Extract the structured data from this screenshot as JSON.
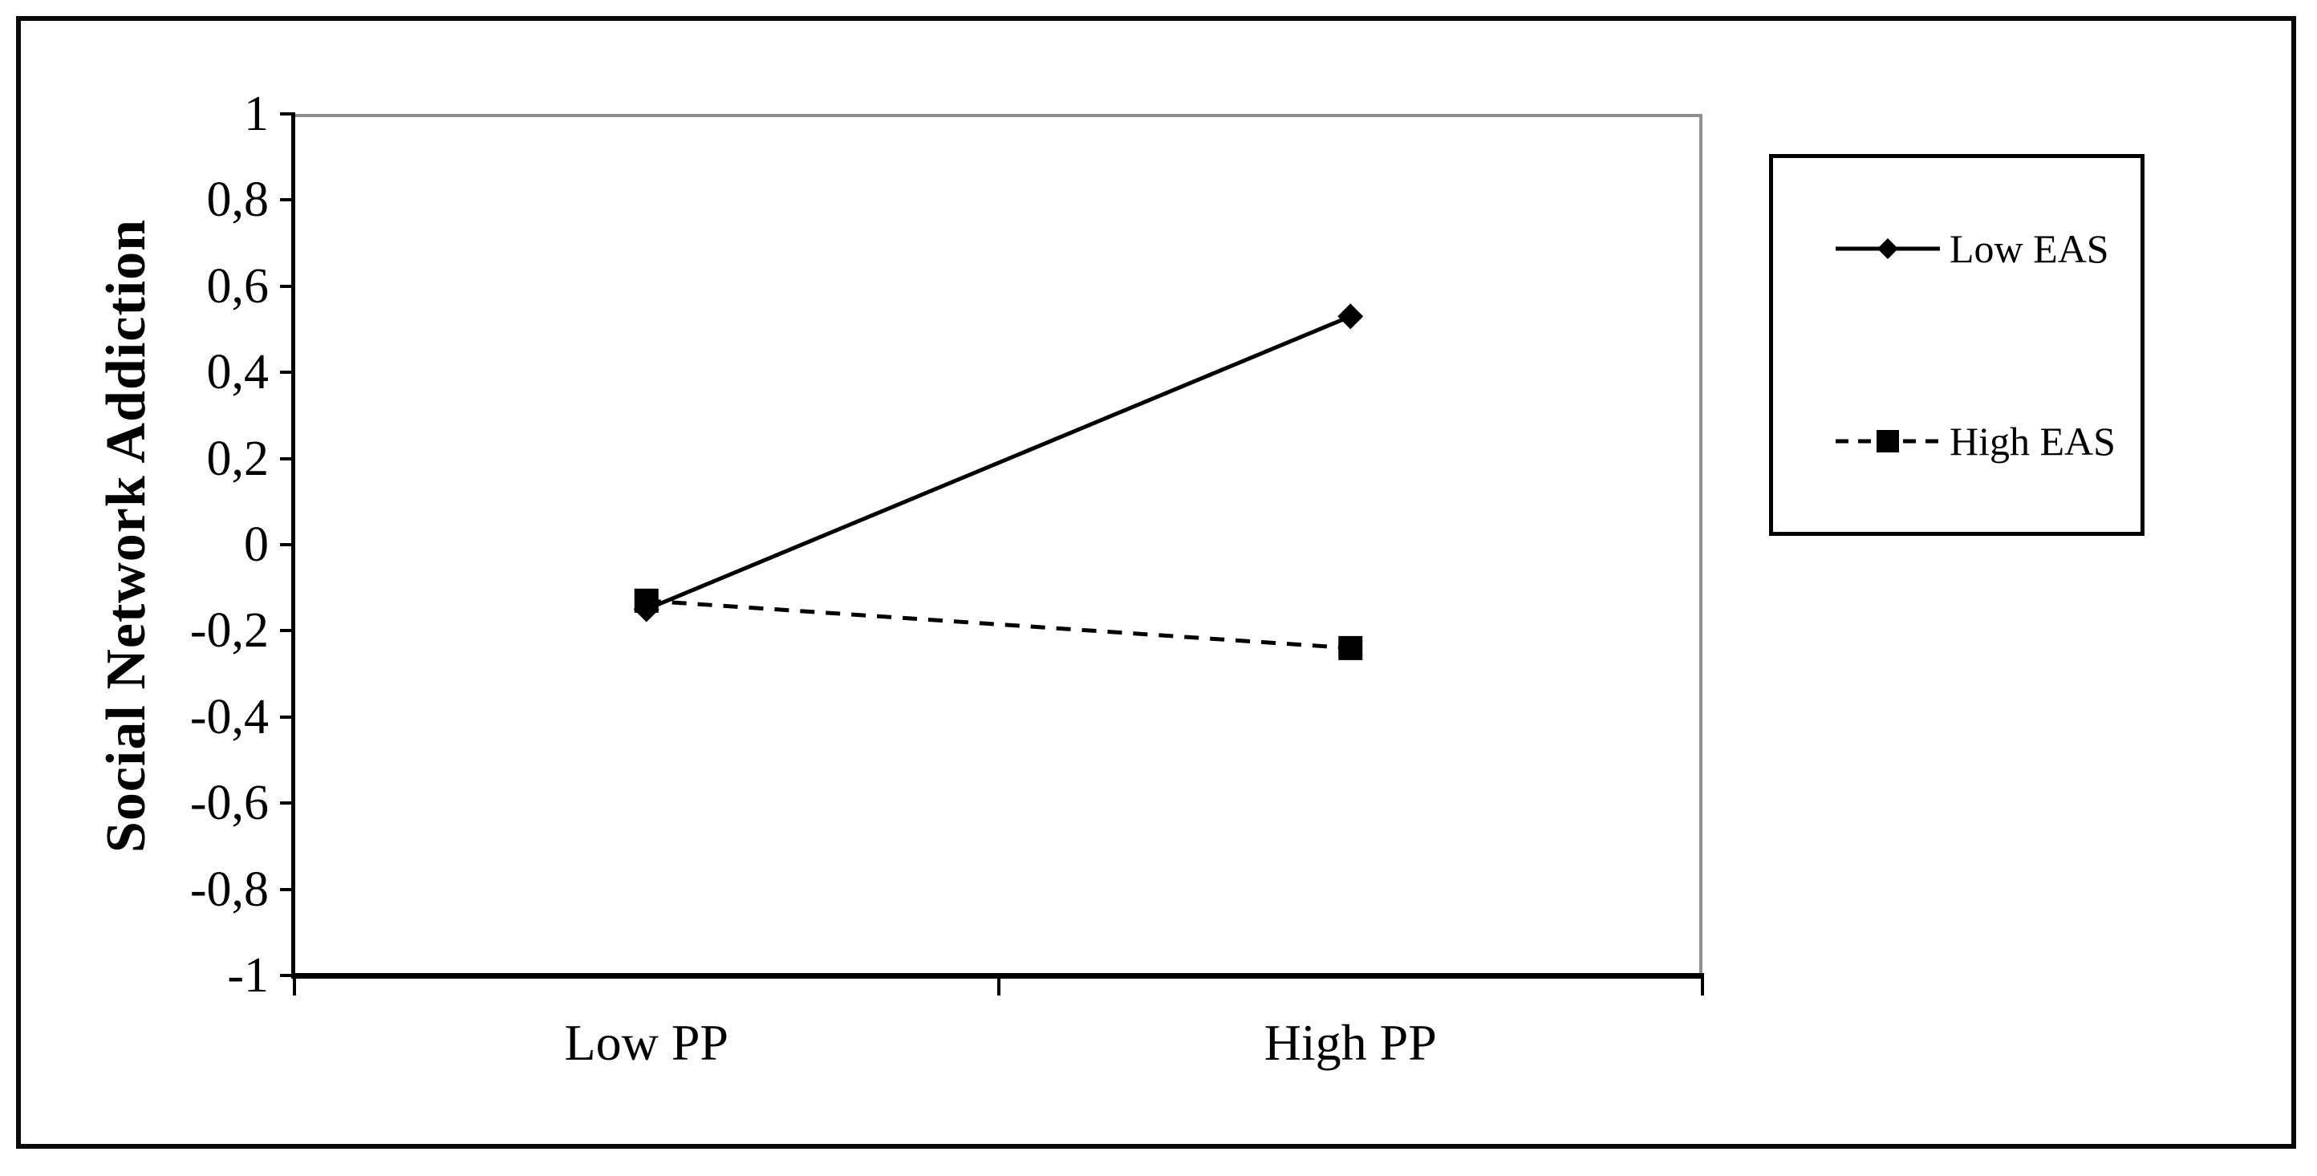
{
  "figure": {
    "background": "#ffffff",
    "border_color": "#000000"
  },
  "chart_data": {
    "type": "line",
    "title": "",
    "xlabel": "",
    "ylabel": "Social Network Addiction",
    "categories": [
      "Low PP",
      "High PP"
    ],
    "ylim": [
      -1,
      1
    ],
    "y_tick_labels": [
      "1",
      "0,8",
      "0,6",
      "0,4",
      "0,2",
      "0",
      "-0,2",
      "-0,4",
      "-0,6",
      "-0,8",
      "-1"
    ],
    "grid": "off",
    "legend_position": "right-outside",
    "series": [
      {
        "name": "Low EAS",
        "marker": "diamond",
        "line_style": "solid",
        "color": "#000000",
        "values": [
          -0.15,
          0.53
        ]
      },
      {
        "name": "High EAS",
        "marker": "square",
        "line_style": "dashed",
        "color": "#000000",
        "values": [
          -0.13,
          -0.24
        ]
      }
    ],
    "colors": {
      "series": "#000000",
      "plot_frame_gray": "#909090",
      "background": "#ffffff"
    }
  }
}
